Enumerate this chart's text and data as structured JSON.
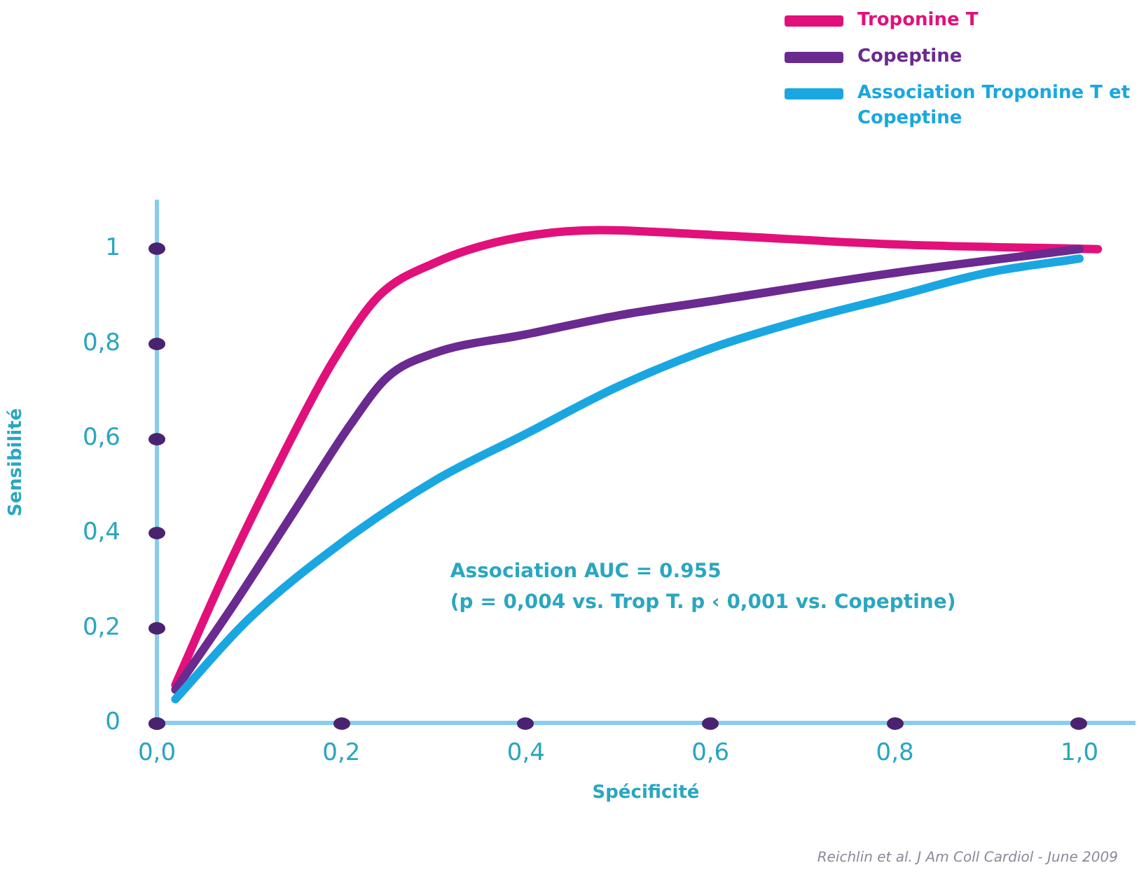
{
  "chart_data": {
    "type": "line",
    "xlabel": "Spécificité",
    "ylabel": "Sensibilité",
    "xlim": [
      0,
      1.06
    ],
    "ylim": [
      0,
      1.1
    ],
    "xticks": [
      {
        "value": 0,
        "label": "0,0"
      },
      {
        "value": 0.2,
        "label": "0,2"
      },
      {
        "value": 0.4,
        "label": "0,4"
      },
      {
        "value": 0.6,
        "label": "0,6"
      },
      {
        "value": 0.8,
        "label": "0,8"
      },
      {
        "value": 1,
        "label": "1,0"
      }
    ],
    "yticks": [
      0,
      {
        "value": 0.2,
        "label": "0,2"
      },
      {
        "value": 0.4,
        "label": "0,4"
      },
      {
        "value": 0.6,
        "label": "0,6"
      },
      {
        "value": 0.8,
        "label": "0,8"
      },
      1
    ],
    "grid": false,
    "legend": "top right",
    "marker": "none",
    "line_style": "solid",
    "series": [
      {
        "name": "Troponine T",
        "color": "#e2107a",
        "x": [
          0.02,
          0.07,
          0.13,
          0.19,
          0.24,
          0.3,
          0.38,
          0.48,
          0.6,
          0.8,
          1.02
        ],
        "values": [
          0.08,
          0.3,
          0.54,
          0.76,
          0.9,
          0.97,
          1.02,
          1.04,
          1.03,
          1.01,
          1.0
        ]
      },
      {
        "name": "Copeptine",
        "color": "#6b2a8f",
        "x": [
          0.02,
          0.08,
          0.15,
          0.21,
          0.25,
          0.3,
          0.4,
          0.5,
          0.6,
          0.8,
          1.0
        ],
        "values": [
          0.07,
          0.24,
          0.45,
          0.63,
          0.73,
          0.78,
          0.82,
          0.86,
          0.89,
          0.95,
          1.0
        ]
      },
      {
        "name": "Association Troponine T et Copeptine",
        "color": "#1aa7e1",
        "x": [
          0.02,
          0.1,
          0.2,
          0.3,
          0.4,
          0.5,
          0.6,
          0.7,
          0.8,
          0.9,
          1.0
        ],
        "values": [
          0.05,
          0.22,
          0.38,
          0.51,
          0.61,
          0.71,
          0.79,
          0.85,
          0.9,
          0.95,
          0.98
        ]
      }
    ],
    "annotations": [
      "Association AUC = 0.955",
      "(p = 0,004 vs. Trop T. p ‹ 0,001 vs. Copeptine)",
      "Reichlin et al. J Am Coll Cardiol - June 2009"
    ]
  }
}
